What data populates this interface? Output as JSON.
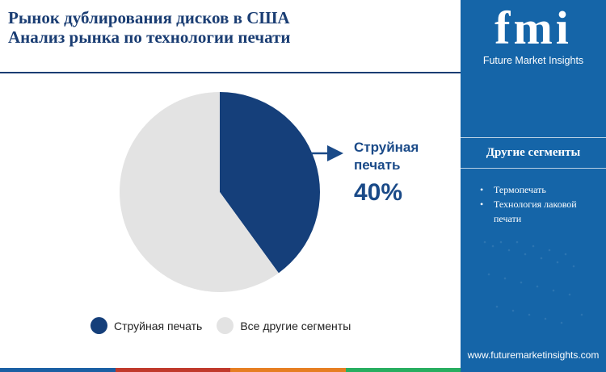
{
  "title": {
    "line1": "Рынок дублирования дисков в США",
    "line2": "Анализ рынка по технологии печати"
  },
  "chart_data": {
    "type": "pie",
    "categories": [
      "Струйная печать",
      "Все другие сегменты"
    ],
    "values": [
      40,
      60
    ],
    "colors": [
      "#153f7a",
      "#e3e3e3"
    ],
    "callout": {
      "label_line1": "Струйная",
      "label_line2": "печать",
      "value": "40%"
    }
  },
  "legend": [
    {
      "label": "Струйная печать",
      "color": "#153f7a"
    },
    {
      "label": "Все другие сегменты",
      "color": "#e3e3e3"
    }
  ],
  "sidebar": {
    "logo_letters": "fmi",
    "logo_text": "Future Market Insights",
    "segments_title": "Другие сегменты",
    "segments": [
      "Термопечать",
      "Технология лаковой печати"
    ],
    "url": "www.futuremarketinsights.com"
  },
  "bottom_bar_colors": [
    "#1a5fa3",
    "#c0392b",
    "#e67e22",
    "#27ae60"
  ],
  "colors": {
    "brand": "#1565a8",
    "title": "#1a3d73",
    "accent": "#1a4a88"
  }
}
